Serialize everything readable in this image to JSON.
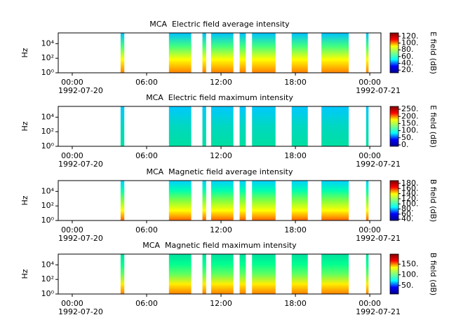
{
  "chart_data": [
    {
      "type": "spectrogram",
      "title": "MCA  Electric field average intensity",
      "ylabel": "Hz",
      "colorbar_label": "E field (dB)",
      "xlim": [
        -1.13,
        24.9
      ],
      "xticks": [
        {
          "value": 0,
          "label": "00:00"
        },
        {
          "value": 6,
          "label": "06:00"
        },
        {
          "value": 12,
          "label": "12:00"
        },
        {
          "value": 18,
          "label": "18:00"
        },
        {
          "value": 24,
          "label": "00:00"
        }
      ],
      "x_dates": [
        {
          "value": 0,
          "label": "1992-07-20"
        },
        {
          "value": 24,
          "label": "1992-07-21"
        }
      ],
      "log_y": true,
      "ylim": [
        1,
        300000
      ],
      "yticks": [
        {
          "value": 1,
          "label": "10⁰"
        },
        {
          "value": 100,
          "label": "10²"
        },
        {
          "value": 10000,
          "label": "10⁴"
        }
      ],
      "clim": [
        12,
        130
      ],
      "cticks": [
        {
          "value": 20,
          "label": "20."
        },
        {
          "value": 40,
          "label": "40."
        },
        {
          "value": 60,
          "label": "60."
        },
        {
          "value": 80,
          "label": "80."
        },
        {
          "value": 100,
          "label": "100."
        },
        {
          "value": 120,
          "label": "120."
        }
      ],
      "colormap": [
        "#00008f",
        "#0000ff",
        "#00ffff",
        "#80ff80",
        "#ffff00",
        "#ff0000",
        "#800000"
      ],
      "segment_colors": [
        "#ff8000",
        "#ffff00",
        "#40ff80",
        "#00c0ff"
      ],
      "segments": [
        [
          3.9,
          4.2
        ],
        [
          7.8,
          9.6
        ],
        [
          10.5,
          10.8
        ],
        [
          11.2,
          13.0
        ],
        [
          13.5,
          14.0
        ],
        [
          14.5,
          16.4
        ],
        [
          17.7,
          19.0
        ],
        [
          20.1,
          22.3
        ],
        [
          23.7,
          23.9
        ]
      ]
    },
    {
      "type": "spectrogram",
      "title": "MCA  Electric field maximum intensity",
      "ylabel": "Hz",
      "colorbar_label": "E field (dB)",
      "xlim": [
        -1.13,
        24.9
      ],
      "xticks": [
        {
          "value": 0,
          "label": "00:00"
        },
        {
          "value": 6,
          "label": "06:00"
        },
        {
          "value": 12,
          "label": "12:00"
        },
        {
          "value": 18,
          "label": "18:00"
        },
        {
          "value": 24,
          "label": "00:00"
        }
      ],
      "x_dates": [
        {
          "value": 0,
          "label": "1992-07-20"
        },
        {
          "value": 24,
          "label": "1992-07-21"
        }
      ],
      "log_y": true,
      "ylim": [
        1,
        300000
      ],
      "yticks": [
        {
          "value": 1,
          "label": "10⁰"
        },
        {
          "value": 100,
          "label": "10²"
        },
        {
          "value": 10000,
          "label": "10⁴"
        }
      ],
      "clim": [
        -10,
        270
      ],
      "cticks": [
        {
          "value": 0,
          "label": "0."
        },
        {
          "value": 50,
          "label": "50."
        },
        {
          "value": 100,
          "label": "100."
        },
        {
          "value": 150,
          "label": "150."
        },
        {
          "value": 200,
          "label": "200."
        },
        {
          "value": 250,
          "label": "250."
        }
      ],
      "colormap": [
        "#00008f",
        "#0000ff",
        "#00ffff",
        "#80ff80",
        "#ffff00",
        "#ff0000",
        "#800000"
      ],
      "segment_colors": [
        "#00e0a0",
        "#00d8c0",
        "#00c8ff"
      ],
      "segments": [
        [
          3.9,
          4.2
        ],
        [
          7.8,
          9.6
        ],
        [
          10.5,
          10.8
        ],
        [
          11.2,
          13.0
        ],
        [
          13.5,
          14.0
        ],
        [
          14.5,
          16.4
        ],
        [
          17.7,
          19.0
        ],
        [
          20.1,
          22.3
        ],
        [
          23.7,
          23.9
        ]
      ]
    },
    {
      "type": "spectrogram",
      "title": "MCA  Magnetic field average intensity",
      "ylabel": "Hz",
      "colorbar_label": "B field (dB)",
      "xlim": [
        -1.13,
        24.9
      ],
      "xticks": [
        {
          "value": 0,
          "label": "00:00"
        },
        {
          "value": 6,
          "label": "06:00"
        },
        {
          "value": 12,
          "label": "12:00"
        },
        {
          "value": 18,
          "label": "18:00"
        },
        {
          "value": 24,
          "label": "00:00"
        }
      ],
      "x_dates": [
        {
          "value": 0,
          "label": "1992-07-20"
        },
        {
          "value": 24,
          "label": "1992-07-21"
        }
      ],
      "log_y": true,
      "ylim": [
        1,
        300000
      ],
      "yticks": [
        {
          "value": 1,
          "label": "10⁰"
        },
        {
          "value": 100,
          "label": "10²"
        },
        {
          "value": 10000,
          "label": "10⁴"
        }
      ],
      "clim": [
        35,
        191
      ],
      "cticks": [
        {
          "value": 40,
          "label": "40."
        },
        {
          "value": 60,
          "label": "60."
        },
        {
          "value": 80,
          "label": "80."
        },
        {
          "value": 100,
          "label": "100."
        },
        {
          "value": 120,
          "label": "120."
        },
        {
          "value": 140,
          "label": "140."
        },
        {
          "value": 160,
          "label": "160."
        },
        {
          "value": 180,
          "label": "180."
        }
      ],
      "colormap": [
        "#00008f",
        "#0000ff",
        "#00ffff",
        "#80ff80",
        "#ffff00",
        "#ff0000",
        "#800000"
      ],
      "segment_colors": [
        "#ff6000",
        "#ffff00",
        "#80ff40",
        "#00ffb0",
        "#00d0ff"
      ],
      "segments": [
        [
          3.9,
          4.2
        ],
        [
          7.8,
          9.6
        ],
        [
          10.5,
          10.8
        ],
        [
          11.2,
          13.0
        ],
        [
          13.5,
          14.0
        ],
        [
          14.5,
          16.4
        ],
        [
          17.7,
          19.0
        ],
        [
          20.1,
          22.3
        ],
        [
          23.7,
          23.9
        ]
      ]
    },
    {
      "type": "spectrogram",
      "title": "MCA  Magnetic field maximum intensity",
      "ylabel": "Hz",
      "colorbar_label": "B field (dB)",
      "xlim": [
        -1.13,
        24.9
      ],
      "xticks": [
        {
          "value": 0,
          "label": "00:00"
        },
        {
          "value": 6,
          "label": "06:00"
        },
        {
          "value": 12,
          "label": "12:00"
        },
        {
          "value": 18,
          "label": "18:00"
        },
        {
          "value": 24,
          "label": "00:00"
        }
      ],
      "x_dates": [
        {
          "value": 0,
          "label": "1992-07-20"
        },
        {
          "value": 24,
          "label": "1992-07-21"
        }
      ],
      "log_y": true,
      "ylim": [
        1,
        300000
      ],
      "yticks": [
        {
          "value": 1,
          "label": "10⁰"
        },
        {
          "value": 100,
          "label": "10²"
        },
        {
          "value": 10000,
          "label": "10⁴"
        }
      ],
      "clim": [
        10,
        197
      ],
      "cticks": [
        {
          "value": 50,
          "label": "50."
        },
        {
          "value": 100,
          "label": "100."
        },
        {
          "value": 150,
          "label": "150."
        }
      ],
      "colormap": [
        "#00008f",
        "#0000ff",
        "#00ffff",
        "#80ff80",
        "#ffff00",
        "#ff0000",
        "#800000"
      ],
      "segment_colors": [
        "#ff8000",
        "#ffee00",
        "#60ff60",
        "#00ff90",
        "#00e0a0"
      ],
      "segments": [
        [
          3.9,
          4.2
        ],
        [
          7.8,
          9.6
        ],
        [
          10.5,
          10.8
        ],
        [
          11.2,
          13.0
        ],
        [
          13.5,
          14.0
        ],
        [
          14.5,
          16.4
        ],
        [
          17.7,
          19.0
        ],
        [
          20.1,
          22.3
        ],
        [
          23.7,
          23.9
        ]
      ]
    }
  ]
}
